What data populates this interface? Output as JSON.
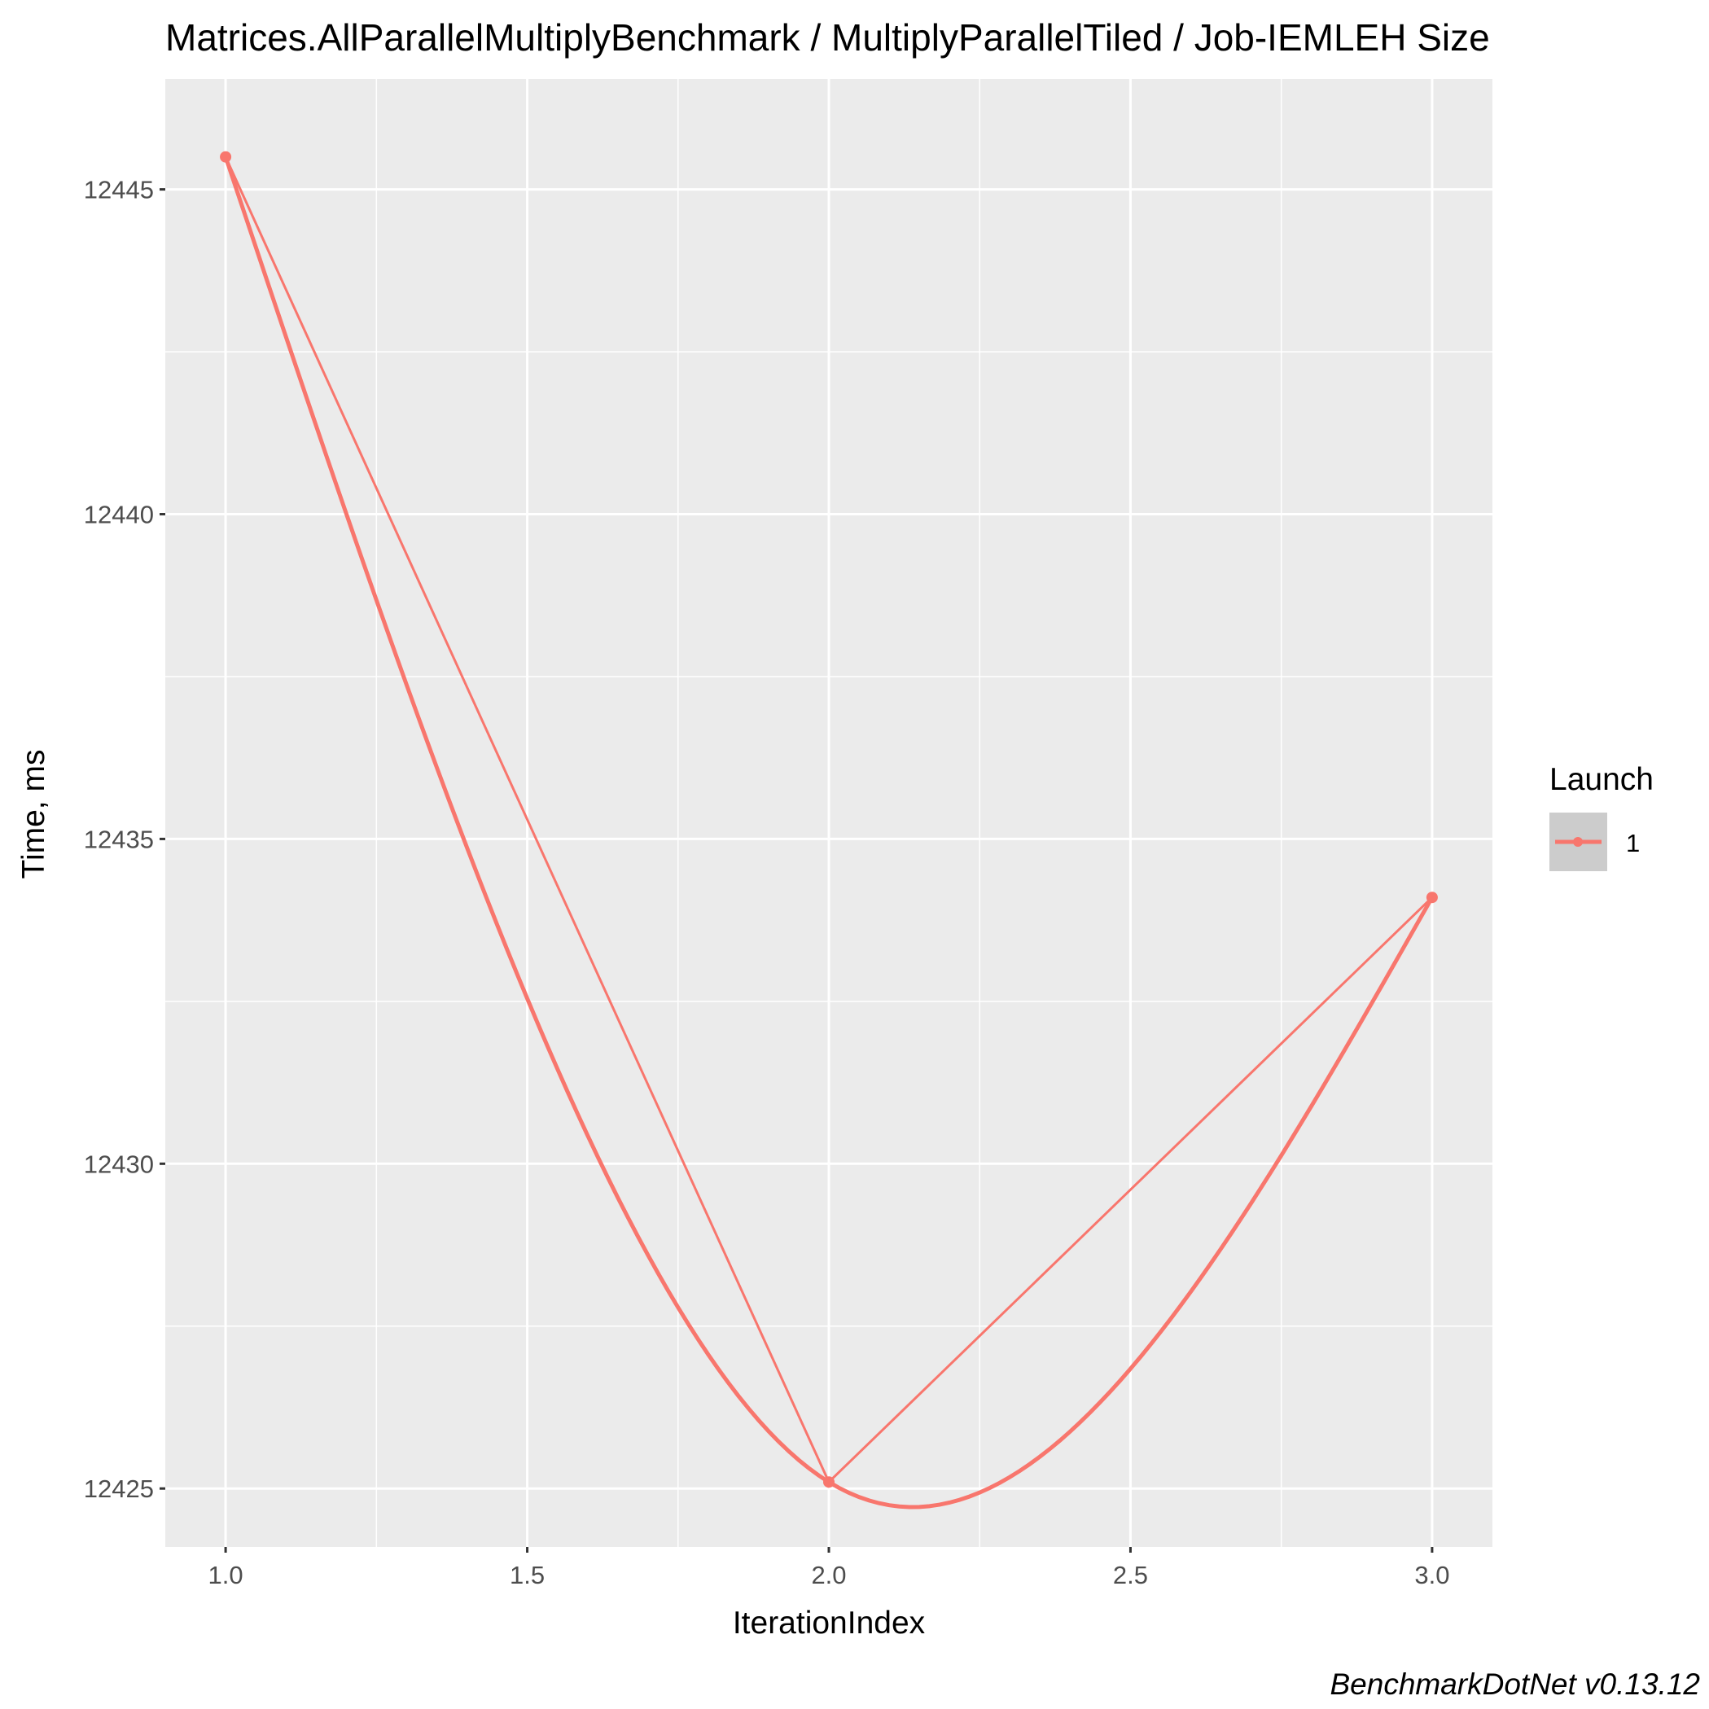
{
  "chart_data": {
    "type": "line",
    "title": "Matrices.AllParallelMultiplyBenchmark / MultiplyParallelTiled / Job-IEMLEH Size",
    "xlabel": "IterationIndex",
    "ylabel": "Time, ms",
    "caption": "BenchmarkDotNet v0.13.12",
    "xlim": [
      0.9,
      3.1
    ],
    "ylim": [
      12424.1,
      12446.7
    ],
    "x_ticks": [
      1.0,
      1.5,
      2.0,
      2.5,
      3.0
    ],
    "x_tick_labels": [
      "1.0",
      "1.5",
      "2.0",
      "2.5",
      "3.0"
    ],
    "y_ticks": [
      12425,
      12430,
      12435,
      12440,
      12445
    ],
    "y_tick_labels": [
      "12425",
      "12430",
      "12435",
      "12440",
      "12445"
    ],
    "grid": true,
    "legend": {
      "title": "Launch",
      "position": "right"
    },
    "series": [
      {
        "name": "1",
        "color": "#F8766D",
        "x": [
          1,
          2,
          3
        ],
        "values": [
          12445.5,
          12425.1,
          12434.1
        ]
      }
    ]
  }
}
